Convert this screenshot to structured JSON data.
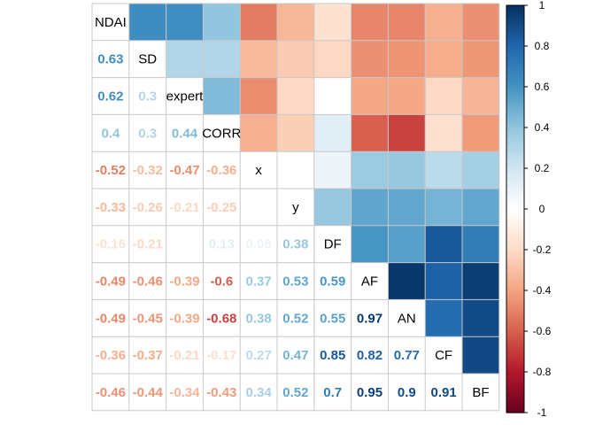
{
  "chart_data": {
    "type": "heatmap",
    "title": "",
    "variables": [
      "NDAI",
      "SD",
      "expert",
      "CORR",
      "x",
      "y",
      "DF",
      "AF",
      "AN",
      "CF",
      "BF"
    ],
    "matrix": [
      [
        1,
        0.63,
        0.62,
        0.4,
        -0.52,
        -0.33,
        -0.16,
        -0.49,
        -0.49,
        -0.36,
        -0.46
      ],
      [
        0.63,
        1,
        0.3,
        0.3,
        -0.32,
        -0.26,
        -0.21,
        -0.46,
        -0.45,
        -0.37,
        -0.44
      ],
      [
        0.62,
        0.3,
        1,
        0.44,
        -0.47,
        -0.21,
        0,
        -0.39,
        -0.39,
        -0.21,
        -0.34
      ],
      [
        0.4,
        0.3,
        0.44,
        1,
        -0.36,
        -0.25,
        0.13,
        -0.6,
        -0.68,
        -0.17,
        -0.43
      ],
      [
        -0.52,
        -0.32,
        -0.47,
        -0.36,
        1,
        0,
        0.08,
        0.37,
        0.38,
        0.27,
        0.34
      ],
      [
        -0.33,
        -0.26,
        -0.21,
        -0.25,
        0,
        1,
        0.38,
        0.53,
        0.52,
        0.47,
        0.52
      ],
      [
        -0.16,
        -0.21,
        0,
        0.13,
        0.08,
        0.38,
        1,
        0.59,
        0.55,
        0.85,
        0.7
      ],
      [
        -0.49,
        -0.46,
        -0.39,
        -0.6,
        0.37,
        0.53,
        0.59,
        1,
        0.97,
        0.82,
        0.95
      ],
      [
        -0.49,
        -0.45,
        -0.39,
        -0.68,
        0.38,
        0.52,
        0.55,
        0.97,
        1,
        0.77,
        0.9
      ],
      [
        -0.36,
        -0.37,
        -0.21,
        -0.17,
        0.27,
        0.47,
        0.85,
        0.82,
        0.77,
        1,
        0.91
      ],
      [
        -0.46,
        -0.44,
        -0.34,
        -0.43,
        0.34,
        0.52,
        0.7,
        0.95,
        0.9,
        0.91,
        1
      ]
    ],
    "lower_triangle": "numbers",
    "upper_triangle": "color squares",
    "colorbar": {
      "range": [
        -1,
        1
      ],
      "ticks": [
        "1",
        "0.8",
        "0.6",
        "0.4",
        "0.2",
        "0",
        "-0.2",
        "-0.4",
        "-0.6",
        "-0.8",
        "-1"
      ],
      "tick_values": [
        1,
        0.8,
        0.6,
        0.4,
        0.2,
        0,
        -0.2,
        -0.4,
        -0.6,
        -0.8,
        -1
      ],
      "position": "right"
    },
    "colors": {
      "negative_end": "#67001f",
      "neutral": "#ffffff",
      "positive_end": "#053061"
    },
    "grid": true
  }
}
